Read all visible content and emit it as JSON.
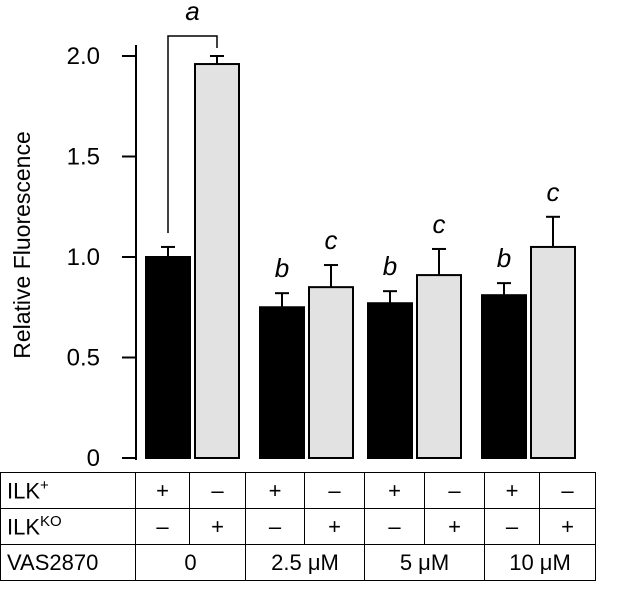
{
  "chart_data": {
    "type": "bar",
    "ylabel": "Relative Fluorescence",
    "ylim": [
      0,
      2.0
    ],
    "yticks": [
      0,
      0.5,
      1.0,
      1.5,
      2.0
    ],
    "ytick_labels": [
      "0",
      "0.5",
      "1.0",
      "1.5",
      "2.0"
    ],
    "groups": [
      "0",
      "2.5 µM",
      "5 µM",
      "10 µM"
    ],
    "series": [
      {
        "name": "ILK+",
        "color": "#000000",
        "values": [
          1.0,
          0.75,
          0.77,
          0.81
        ],
        "errors": [
          0.05,
          0.07,
          0.06,
          0.06
        ],
        "annotations": [
          "",
          "b",
          "b",
          "b"
        ]
      },
      {
        "name": "ILKKO",
        "color": "#e2e2e2",
        "values": [
          1.96,
          0.85,
          0.91,
          1.05
        ],
        "errors": [
          0.04,
          0.11,
          0.13,
          0.15
        ],
        "annotations": [
          "",
          "c",
          "c",
          "c"
        ]
      }
    ],
    "significance": {
      "label": "a",
      "groups": [
        0
      ],
      "compares": [
        "ILK+",
        "ILKKO"
      ]
    }
  },
  "table": {
    "row_ilk_plus": {
      "label": "ILK",
      "sup": "+",
      "cells": [
        "+",
        "–",
        "+",
        "–",
        "+",
        "–",
        "+",
        "–"
      ]
    },
    "row_ilk_ko": {
      "label": "ILK",
      "sup": "KO",
      "cells": [
        "–",
        "+",
        "–",
        "+",
        "–",
        "+",
        "–",
        "+"
      ]
    },
    "row_vas": {
      "label": "VAS2870",
      "doses": [
        "0",
        "2.5 μM",
        "5 μM",
        "10 μM"
      ]
    }
  }
}
